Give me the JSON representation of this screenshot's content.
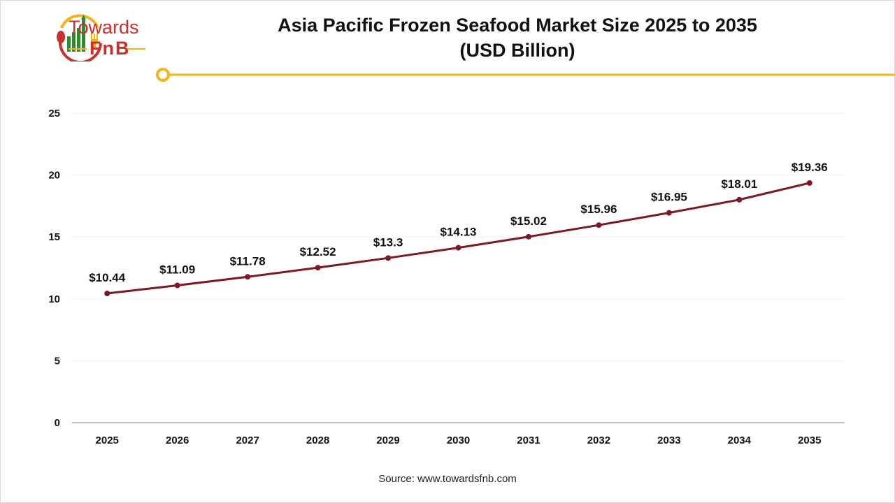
{
  "logo": {
    "line1": "Towards",
    "line2": "FnB"
  },
  "colors": {
    "line": "#7b1a24",
    "accent": "#f2b418",
    "logo_red": "#c8302b",
    "logo_green": "#2e8b2e"
  },
  "source": "Source: www.towardsfnb.com",
  "chart_data": {
    "type": "line",
    "title": "Asia Pacific Frozen Seafood Market Size 2025 to 2035",
    "subtitle": "(USD Billion)",
    "categories": [
      "2025",
      "2026",
      "2027",
      "2028",
      "2029",
      "2030",
      "2031",
      "2032",
      "2033",
      "2034",
      "2035"
    ],
    "values": [
      10.44,
      11.09,
      11.78,
      12.52,
      13.3,
      14.13,
      15.02,
      15.96,
      16.95,
      18.01,
      19.36
    ],
    "data_labels": [
      "$10.44",
      "$11.09",
      "$11.78",
      "$12.52",
      "$13.3",
      "$14.13",
      "$15.02",
      "$15.96",
      "$16.95",
      "$18.01",
      "$19.36"
    ],
    "ylim": [
      0,
      25
    ],
    "yticks": [
      "0",
      "5",
      "10",
      "15",
      "20",
      "25"
    ],
    "grid": true,
    "legend": "none"
  }
}
